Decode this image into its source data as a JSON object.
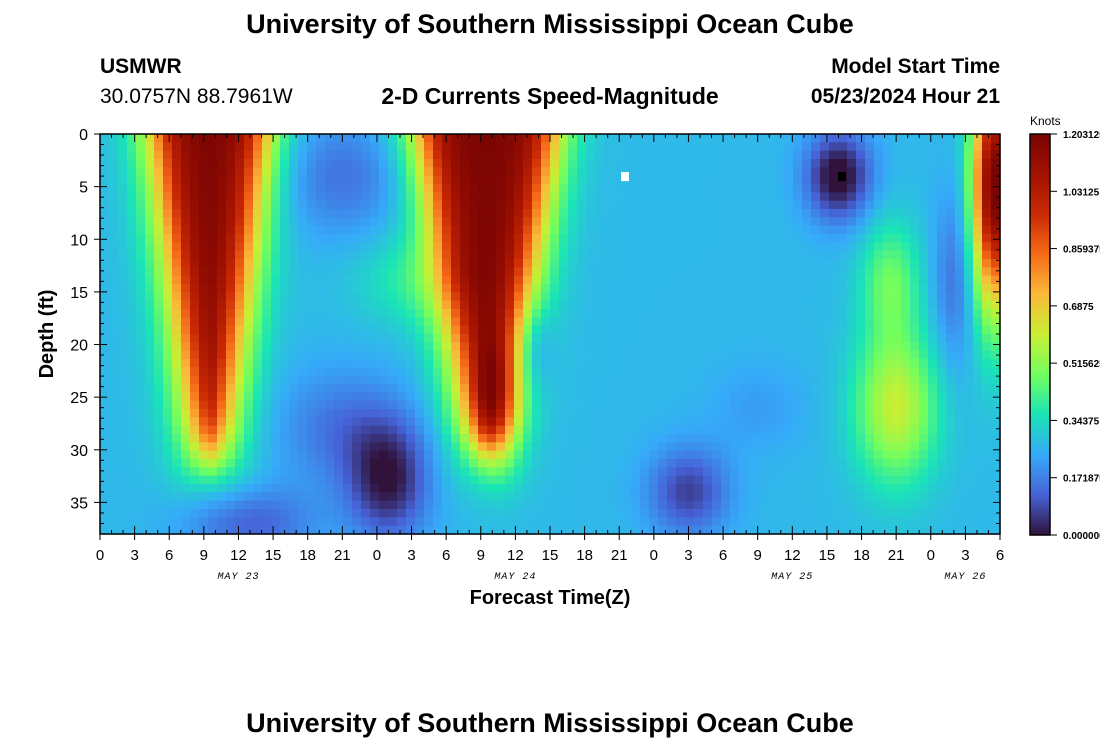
{
  "header": {
    "title": "University of Southern Mississippi Ocean Cube",
    "station_id": "USMWR",
    "station_coords": "30.0757N  88.7961W",
    "plot_title": "2-D Currents Speed-Magnitude",
    "model_start_label": "Model Start Time",
    "model_start_value": "05/23/2024 Hour 21"
  },
  "footer": {
    "title": "University of Southern Mississippi Ocean Cube"
  },
  "chart_data": {
    "type": "heatmap",
    "title": "2-D Currents Speed-Magnitude",
    "xlabel": "Forecast Time(Z)",
    "ylabel": "Depth (ft)",
    "x_unit": "forecast hours from 00Z May 23",
    "xlim": [
      0,
      78
    ],
    "ylim": [
      0,
      38
    ],
    "y_ticks": [
      0,
      5,
      10,
      15,
      20,
      25,
      30,
      35
    ],
    "x_tick_labels": [
      "0",
      "3",
      "6",
      "9",
      "12",
      "15",
      "18",
      "21",
      "0",
      "3",
      "6",
      "9",
      "12",
      "15",
      "18",
      "21",
      "0",
      "3",
      "6",
      "9",
      "12",
      "15",
      "18",
      "21",
      "0",
      "3",
      "6"
    ],
    "x_tick_hours": [
      0,
      3,
      6,
      9,
      12,
      15,
      18,
      21,
      24,
      27,
      30,
      33,
      36,
      39,
      42,
      45,
      48,
      51,
      54,
      57,
      60,
      63,
      66,
      69,
      72,
      75,
      78
    ],
    "day_labels": [
      {
        "text": "MAY 23",
        "hour": 12
      },
      {
        "text": "MAY 24",
        "hour": 36
      },
      {
        "text": "MAY 25",
        "hour": 60
      },
      {
        "text": "MAY 26",
        "hour": 75
      }
    ],
    "colorbar": {
      "label": "Knots",
      "min": 0.0,
      "max": 1.2,
      "tick_labels": [
        "1.203125",
        "1.03125",
        "0.859375",
        "0.6875",
        "0.515625",
        "0.34375",
        "0.171875",
        "0.000000"
      ],
      "tick_values": [
        1.203125,
        1.03125,
        0.859375,
        0.6875,
        0.515625,
        0.34375,
        0.171875,
        0.0
      ]
    },
    "background_speed": 0.27,
    "features": [
      {
        "type": "cone",
        "name": "flood-peak-1",
        "center_hour": 9.5,
        "top_halfwidth": 4.5,
        "bottom_depth": 31,
        "peak": 1.2
      },
      {
        "type": "cone",
        "name": "flood-peak-2",
        "center_hour": 33.5,
        "top_halfwidth": 5.5,
        "bottom_depth": 30,
        "peak": 1.2
      },
      {
        "type": "blob",
        "name": "edge-peak",
        "hour": 77.5,
        "depth": 5,
        "sx": 1.3,
        "sy": 8,
        "amp": 0.95
      },
      {
        "type": "blob",
        "name": "calm-deep-1",
        "hour": 25,
        "depth": 33,
        "sx": 2.5,
        "sy": 4,
        "amp": -0.25
      },
      {
        "type": "blob",
        "name": "calm-deep-2",
        "hour": 21,
        "depth": 28,
        "sx": 4,
        "sy": 4,
        "amp": -0.12
      },
      {
        "type": "blob",
        "name": "calm-deep-3",
        "hour": 51,
        "depth": 34,
        "sx": 2.5,
        "sy": 3,
        "amp": -0.2
      },
      {
        "type": "blob",
        "name": "calm-deep-4",
        "hour": 13,
        "depth": 37,
        "sx": 4,
        "sy": 2.5,
        "amp": -0.15
      },
      {
        "type": "blob",
        "name": "calm-mid-1",
        "hour": 37.5,
        "depth": 20,
        "sx": 1.2,
        "sy": 3,
        "amp": -0.15
      },
      {
        "type": "blob",
        "name": "calm-surface-1",
        "hour": 21,
        "depth": 4,
        "sx": 4,
        "sy": 4,
        "amp": -0.12
      },
      {
        "type": "blob",
        "name": "calm-surface-2",
        "hour": 64,
        "depth": 4,
        "sx": 2,
        "sy": 3,
        "amp": -0.3
      },
      {
        "type": "blob",
        "name": "calm-mid-2",
        "hour": 74,
        "depth": 14,
        "sx": 1.3,
        "sy": 6,
        "amp": -0.12
      },
      {
        "type": "blob",
        "name": "calm-deep-5",
        "hour": 57,
        "depth": 26,
        "sx": 3,
        "sy": 3,
        "amp": -0.05
      },
      {
        "type": "blob",
        "name": "moderate-1",
        "hour": 34.5,
        "depth": 26,
        "sx": 1.3,
        "sy": 4,
        "amp": 0.25
      },
      {
        "type": "blob",
        "name": "moderate-2",
        "hour": 69,
        "depth": 26,
        "sx": 2.5,
        "sy": 5,
        "amp": 0.33
      },
      {
        "type": "blob",
        "name": "moderate-3",
        "hour": 68.5,
        "depth": 14,
        "sx": 1.8,
        "sy": 4,
        "amp": 0.2
      },
      {
        "type": "blob",
        "name": "moderate-bridge",
        "hour": 27,
        "depth": 14,
        "sx": 3.5,
        "sy": 3,
        "amp": 0.1
      }
    ],
    "markers": [
      {
        "name": "white-marker",
        "hour": 45.5,
        "depth": 4,
        "color": "#ffffff"
      },
      {
        "name": "black-marker",
        "hour": 64.3,
        "depth": 4,
        "color": "#000000"
      }
    ]
  }
}
